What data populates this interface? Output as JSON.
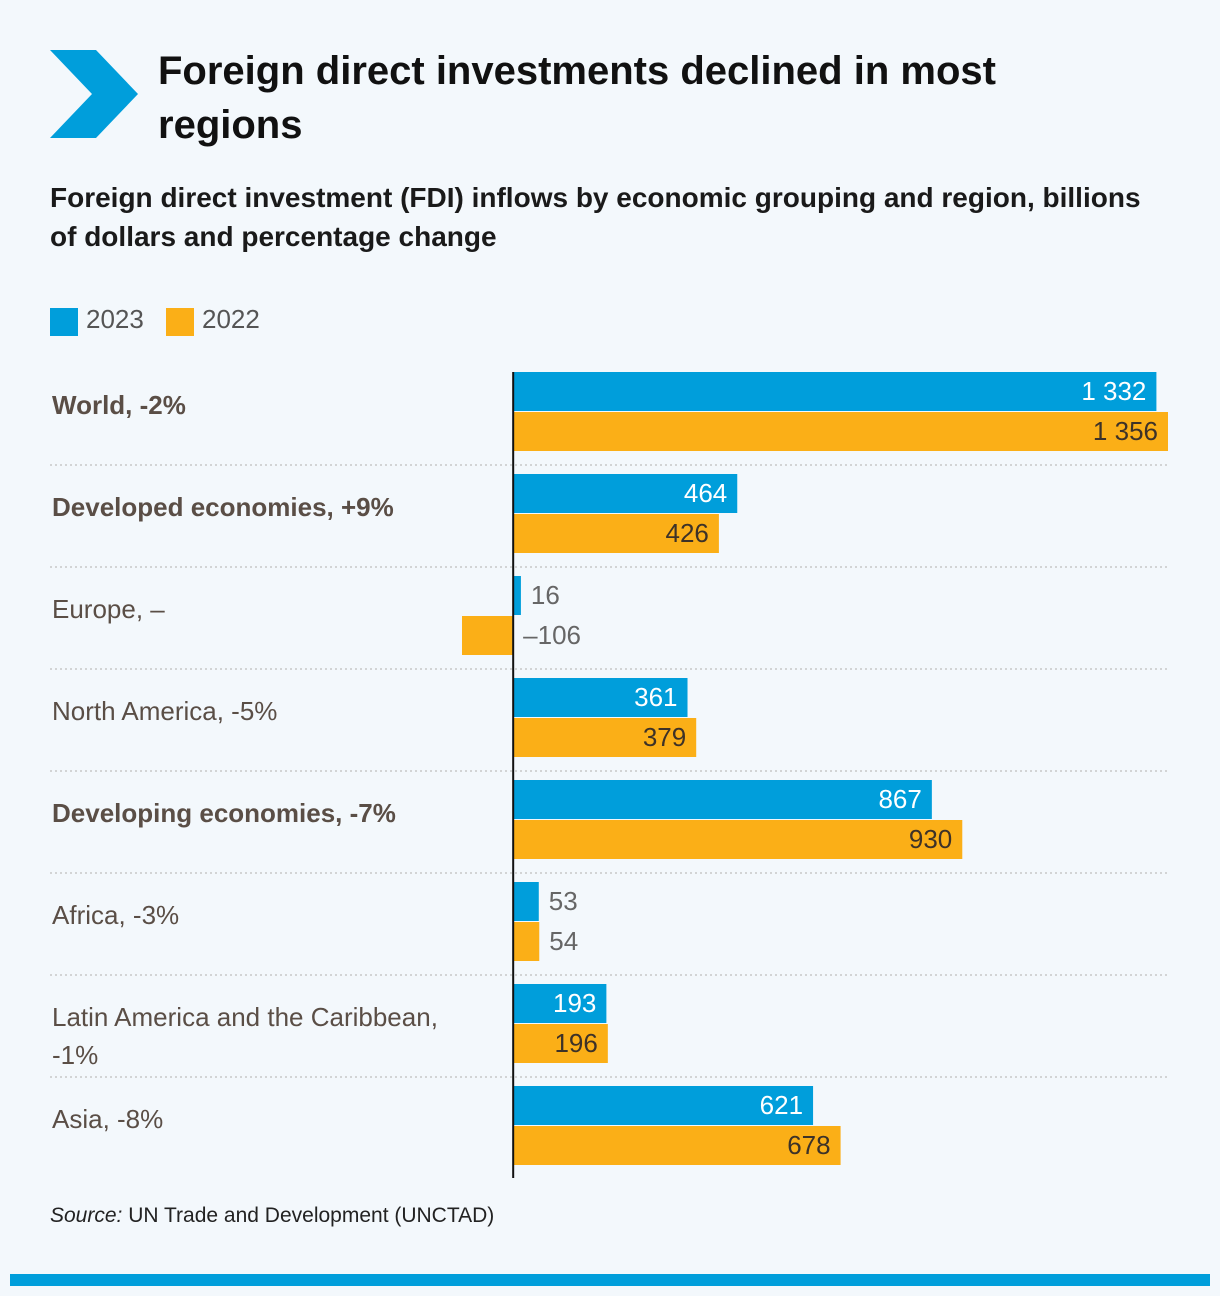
{
  "chart_data": {
    "type": "bar",
    "orientation": "horizontal",
    "title": "Foreign direct investments declined in most regions",
    "subtitle": "Foreign direct investment (FDI) inflows by economic grouping and region, billions of dollars and percentage change",
    "categories": [
      "World, -2%",
      "Developed economies, +9%",
      "Europe, –",
      "North America, -5%",
      "Developing economies, -7%",
      "Africa, -3%",
      "Latin America and the Caribbean, -1%",
      "Asia, -8%"
    ],
    "emphasis": [
      true,
      true,
      false,
      false,
      true,
      false,
      false,
      false
    ],
    "series": [
      {
        "name": "2023",
        "color": "#009edb",
        "values": [
          1332,
          464,
          16,
          361,
          867,
          53,
          193,
          621
        ],
        "value_labels": [
          "1 332",
          "464",
          "16",
          "361",
          "867",
          "53",
          "193",
          "621"
        ]
      },
      {
        "name": "2022",
        "color": "#fbaf17",
        "values": [
          1356,
          426,
          -106,
          379,
          930,
          54,
          196,
          678
        ],
        "value_labels": [
          "1 356",
          "426",
          "–106",
          "379",
          "930",
          "54",
          "196",
          "678"
        ]
      }
    ],
    "xlim": [
      -106,
      1356
    ],
    "source_label": "Source:",
    "source": "UN Trade and Development (UNCTAD)"
  }
}
